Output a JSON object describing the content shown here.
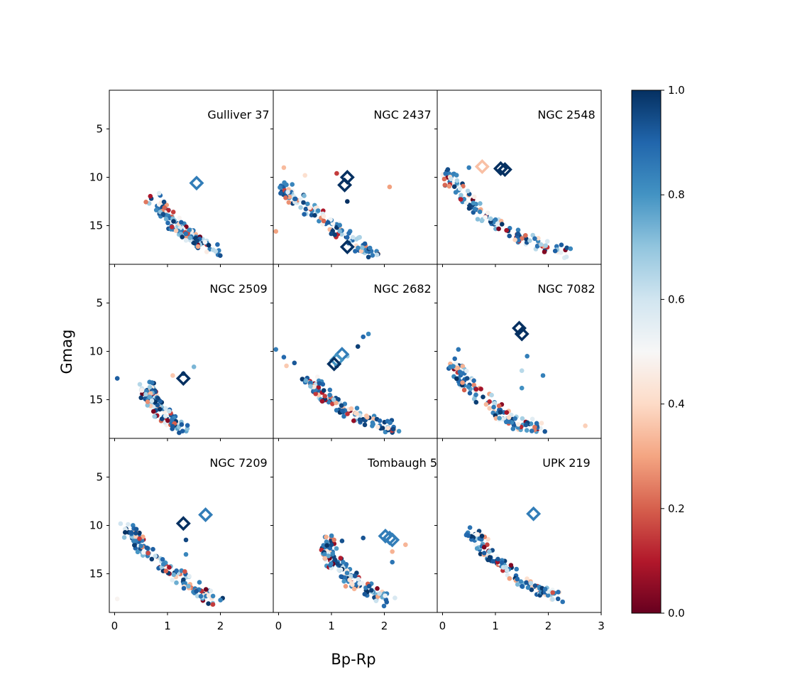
{
  "figure": {
    "xlabel": "Bp-Rp",
    "ylabel": "Gmag",
    "colorbar": {
      "range": [
        0.0,
        1.0
      ],
      "ticks": [
        "0.0",
        "0.2",
        "0.4",
        "0.6",
        "0.8",
        "1.0"
      ],
      "colormap": "RdBu",
      "stops": [
        "#67001f",
        "#b2182b",
        "#d6604d",
        "#f4a582",
        "#fddbc7",
        "#f7f7f7",
        "#d1e5f0",
        "#92c5de",
        "#4393c3",
        "#2166ac",
        "#053061"
      ]
    }
  },
  "chart_data": [
    {
      "type": "scatter",
      "title": "Gulliver 37",
      "xlim": [
        -0.1,
        3.0
      ],
      "ylim": [
        19,
        1
      ],
      "xticks": [
        0,
        1,
        2
      ],
      "yticks": [
        5,
        10,
        15
      ],
      "sequence": [
        [
          0.7,
          12.0
        ],
        [
          1.2,
          15.2
        ],
        [
          1.9,
          17.8
        ]
      ],
      "bright": [],
      "markers": [
        {
          "x": 1.55,
          "y": 10.6,
          "p": 0.85
        }
      ]
    },
    {
      "type": "scatter",
      "title": "NGC 2437",
      "xlim": [
        -0.1,
        3.0
      ],
      "ylim": [
        19,
        1
      ],
      "xticks": [
        0,
        1,
        2
      ],
      "yticks": [
        5,
        10,
        15
      ],
      "sequence": [
        [
          0.1,
          11.0
        ],
        [
          0.4,
          12.5
        ],
        [
          0.9,
          14.5
        ],
        [
          1.4,
          16.5
        ],
        [
          1.8,
          18.0
        ]
      ],
      "bright": [
        [
          0.1,
          9.0
        ],
        [
          0.5,
          9.8
        ],
        [
          1.1,
          9.6
        ],
        [
          1.3,
          12.5
        ],
        [
          2.1,
          11.0
        ],
        [
          -0.05,
          15.6
        ]
      ],
      "markers": [
        {
          "x": 1.3,
          "y": 10.0,
          "p": 1.0
        },
        {
          "x": 1.25,
          "y": 10.8,
          "p": 1.0
        },
        {
          "x": 1.3,
          "y": 17.2,
          "p": 1.0
        }
      ]
    },
    {
      "type": "scatter",
      "title": "NGC 2548",
      "xlim": [
        -0.1,
        3.0
      ],
      "ylim": [
        19,
        1
      ],
      "xticks": [
        0,
        1,
        2
      ],
      "yticks": [
        5,
        10,
        15
      ],
      "sequence": [
        [
          0.1,
          9.5
        ],
        [
          0.3,
          11.5
        ],
        [
          0.9,
          14.5
        ],
        [
          1.6,
          16.5
        ],
        [
          2.4,
          18.0
        ]
      ],
      "bright": [
        [
          0.5,
          9.0
        ],
        [
          0.1,
          9.2
        ]
      ],
      "markers": [
        {
          "x": 0.75,
          "y": 8.9,
          "p": 0.35
        },
        {
          "x": 1.1,
          "y": 9.1,
          "p": 1.0
        },
        {
          "x": 1.18,
          "y": 9.2,
          "p": 1.0
        }
      ]
    },
    {
      "type": "scatter",
      "title": "NGC 2509",
      "xlim": [
        -0.1,
        3.0
      ],
      "ylim": [
        19,
        1
      ],
      "xticks": [
        0,
        1,
        2
      ],
      "yticks": [
        5,
        10,
        15
      ],
      "sequence": [
        [
          0.6,
          13.5
        ],
        [
          0.7,
          15.0
        ],
        [
          0.9,
          16.5
        ],
        [
          1.3,
          18.0
        ]
      ],
      "bright": [
        [
          1.1,
          12.5
        ],
        [
          1.3,
          12.3
        ],
        [
          1.5,
          11.6
        ],
        [
          0.05,
          12.8
        ],
        [
          0.5,
          14.8
        ]
      ],
      "markers": [
        {
          "x": 1.3,
          "y": 12.8,
          "p": 1.0
        }
      ]
    },
    {
      "type": "scatter",
      "title": "NGC 2682",
      "xlim": [
        -0.1,
        3.0
      ],
      "ylim": [
        19,
        1
      ],
      "xticks": [
        0,
        1,
        2
      ],
      "yticks": [
        5,
        10,
        15
      ],
      "sequence": [
        [
          0.5,
          12.5
        ],
        [
          0.9,
          14.8
        ],
        [
          1.5,
          16.8
        ],
        [
          2.2,
          18.0
        ]
      ],
      "bright": [
        [
          1.1,
          11.5
        ],
        [
          1.3,
          10.5
        ],
        [
          1.5,
          9.5
        ],
        [
          1.6,
          8.5
        ],
        [
          1.7,
          8.2
        ],
        [
          0.1,
          10.6
        ],
        [
          0.3,
          11.2
        ],
        [
          0.15,
          11.5
        ],
        [
          -0.05,
          9.8
        ]
      ],
      "markers": [
        {
          "x": 1.2,
          "y": 10.3,
          "p": 0.85
        },
        {
          "x": 1.1,
          "y": 10.9,
          "p": 0.8
        },
        {
          "x": 1.05,
          "y": 11.3,
          "p": 1.0
        }
      ]
    },
    {
      "type": "scatter",
      "title": "NGC 7082",
      "xlim": [
        -0.1,
        3.0
      ],
      "ylim": [
        19,
        1
      ],
      "xticks": [
        0,
        1,
        2
      ],
      "yticks": [
        5,
        10,
        15
      ],
      "sequence": [
        [
          0.2,
          11.0
        ],
        [
          0.4,
          13.0
        ],
        [
          0.9,
          15.5
        ],
        [
          1.4,
          17.5
        ],
        [
          1.9,
          18.0
        ]
      ],
      "bright": [
        [
          0.3,
          9.8
        ],
        [
          1.6,
          10.5
        ],
        [
          1.5,
          12.0
        ],
        [
          1.9,
          12.5
        ],
        [
          1.5,
          13.8
        ],
        [
          2.7,
          17.7
        ],
        [
          1.7,
          17.0
        ]
      ],
      "markers": [
        {
          "x": 1.45,
          "y": 7.6,
          "p": 1.0
        },
        {
          "x": 1.5,
          "y": 8.2,
          "p": 1.0
        }
      ]
    },
    {
      "type": "scatter",
      "title": "NGC 7209",
      "xlim": [
        -0.1,
        3.0
      ],
      "ylim": [
        19,
        1
      ],
      "xticks": [
        0,
        1,
        2
      ],
      "yticks": [
        5,
        10,
        15
      ],
      "sequence": [
        [
          0.2,
          10.0
        ],
        [
          0.5,
          12.0
        ],
        [
          1.0,
          14.5
        ],
        [
          1.5,
          16.5
        ],
        [
          2.0,
          18.0
        ]
      ],
      "bright": [
        [
          0.05,
          17.6
        ],
        [
          1.35,
          11.5
        ],
        [
          0.4,
          10.8
        ],
        [
          1.35,
          13.0
        ]
      ],
      "markers": [
        {
          "x": 1.3,
          "y": 9.8,
          "p": 1.0
        },
        {
          "x": 1.72,
          "y": 8.9,
          "p": 0.85
        }
      ]
    },
    {
      "type": "scatter",
      "title": "Tombaugh 5",
      "xlim": [
        -0.1,
        3.0
      ],
      "ylim": [
        19,
        1
      ],
      "xticks": [
        0,
        1,
        2
      ],
      "yticks": [
        5,
        10,
        15
      ],
      "sequence": [
        [
          0.9,
          11.5
        ],
        [
          1.0,
          13.5
        ],
        [
          1.4,
          15.8
        ],
        [
          2.1,
          17.8
        ]
      ],
      "bright": [
        [
          0.9,
          11.2
        ],
        [
          1.0,
          12.0
        ],
        [
          1.6,
          11.3
        ],
        [
          2.4,
          12.0
        ],
        [
          2.15,
          12.7
        ],
        [
          2.15,
          13.8
        ],
        [
          2.2,
          17.5
        ],
        [
          1.05,
          11.5
        ],
        [
          1.2,
          11.6
        ]
      ],
      "markers": [
        {
          "x": 2.02,
          "y": 11.1,
          "p": 0.85
        },
        {
          "x": 2.1,
          "y": 11.3,
          "p": 0.85
        },
        {
          "x": 2.15,
          "y": 11.5,
          "p": 0.85
        }
      ]
    },
    {
      "type": "scatter",
      "title": "UPK 219",
      "xlim": [
        -0.1,
        3.0
      ],
      "ylim": [
        19,
        1
      ],
      "xticks": [
        0,
        1,
        2,
        3
      ],
      "yticks": [
        5,
        10,
        15
      ],
      "sequence": [
        [
          0.55,
          10.6
        ],
        [
          0.9,
          13.0
        ],
        [
          1.5,
          15.8
        ],
        [
          2.2,
          17.5
        ]
      ],
      "bright": [],
      "markers": [
        {
          "x": 1.72,
          "y": 8.8,
          "p": 0.85
        }
      ]
    }
  ]
}
